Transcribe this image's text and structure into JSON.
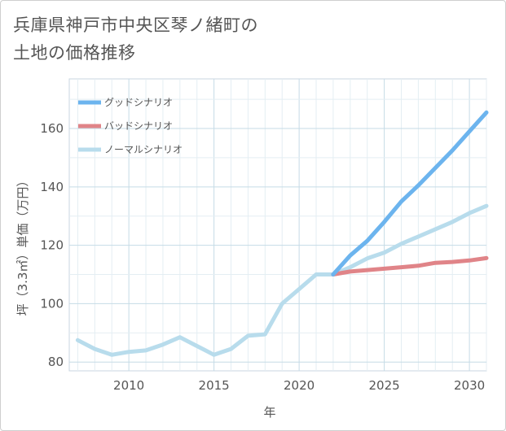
{
  "title_lines": [
    "兵庫県神戸市中央区琴ノ緒町の",
    "土地の価格推移"
  ],
  "chart_data": {
    "type": "line",
    "title": "兵庫県神戸市中央区琴ノ緒町の土地の価格推移",
    "xlabel": "年",
    "ylabel": "坪（3.3㎡）単価（万円）",
    "xlim": [
      2006.5,
      2031
    ],
    "ylim": [
      77,
      177
    ],
    "xticks": [
      2010,
      2015,
      2020,
      2025,
      2030
    ],
    "yticks": [
      80,
      100,
      120,
      140,
      160
    ],
    "legend_position": "top-left",
    "series": [
      {
        "name": "グッドシナリオ",
        "color": "#6cb4ee",
        "x": [
          2022,
          2023,
          2024,
          2025,
          2026,
          2027,
          2028,
          2029,
          2030,
          2031
        ],
        "values": [
          110,
          116.5,
          121.5,
          128,
          135,
          140.5,
          146.5,
          152.5,
          159,
          165.5
        ]
      },
      {
        "name": "バッドシナリオ",
        "color": "#e08488",
        "x": [
          2022,
          2023,
          2024,
          2025,
          2026,
          2027,
          2028,
          2029,
          2030,
          2031
        ],
        "values": [
          110,
          111,
          111.5,
          112,
          112.5,
          113,
          114,
          114.3,
          114.8,
          115.6
        ]
      },
      {
        "name": "ノーマルシナリオ",
        "color": "#b8dcec",
        "x": [
          2007,
          2008,
          2009,
          2010,
          2011,
          2012,
          2013,
          2014,
          2015,
          2016,
          2017,
          2018,
          2019,
          2020,
          2021,
          2022,
          2023,
          2024,
          2025,
          2026,
          2027,
          2028,
          2029,
          2030,
          2031
        ],
        "values": [
          87.5,
          84.5,
          82.5,
          83.5,
          84,
          86,
          88.5,
          85.5,
          82.5,
          84.5,
          89,
          89.5,
          100,
          105,
          110,
          110,
          112.5,
          115.5,
          117.5,
          120.5,
          123,
          125.5,
          128,
          131,
          133.5
        ]
      }
    ]
  }
}
